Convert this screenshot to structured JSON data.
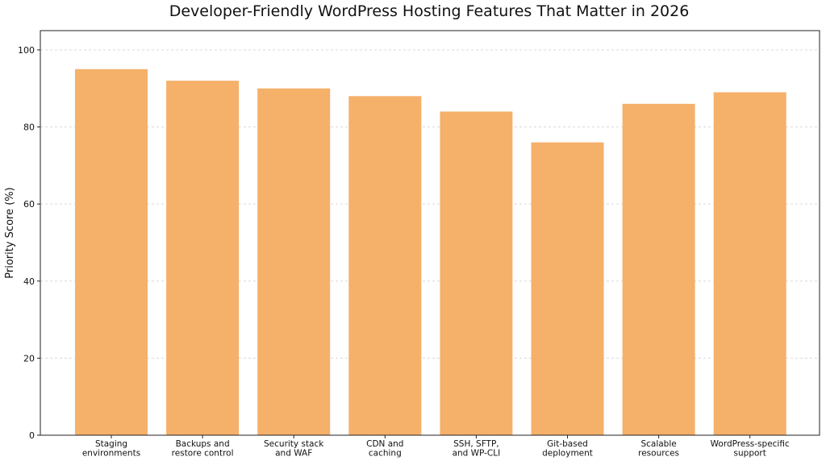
{
  "chart_data": {
    "type": "bar",
    "title": "Developer-Friendly WordPress Hosting Features That Matter in 2026",
    "xlabel": "",
    "ylabel": "Priority Score (%)",
    "categories": [
      "Staging\nenvironments",
      "Backups and\nrestore control",
      "Security stack\nand WAF",
      "CDN and\ncaching",
      "SSH, SFTP,\nand WP-CLI",
      "Git-based\ndeployment",
      "Scalable\nresources",
      "WordPress-specific\nsupport"
    ],
    "values": [
      95,
      92,
      90,
      88,
      84,
      76,
      86,
      89
    ],
    "ylim": [
      0,
      105
    ],
    "yticks": [
      0,
      20,
      40,
      60,
      80,
      100
    ],
    "grid": "y-dashed",
    "legend": "none",
    "colors": {
      "bar": "#F5B06A",
      "grid": "#d9d9d9",
      "axis": "#222222",
      "text": "#111111"
    }
  }
}
